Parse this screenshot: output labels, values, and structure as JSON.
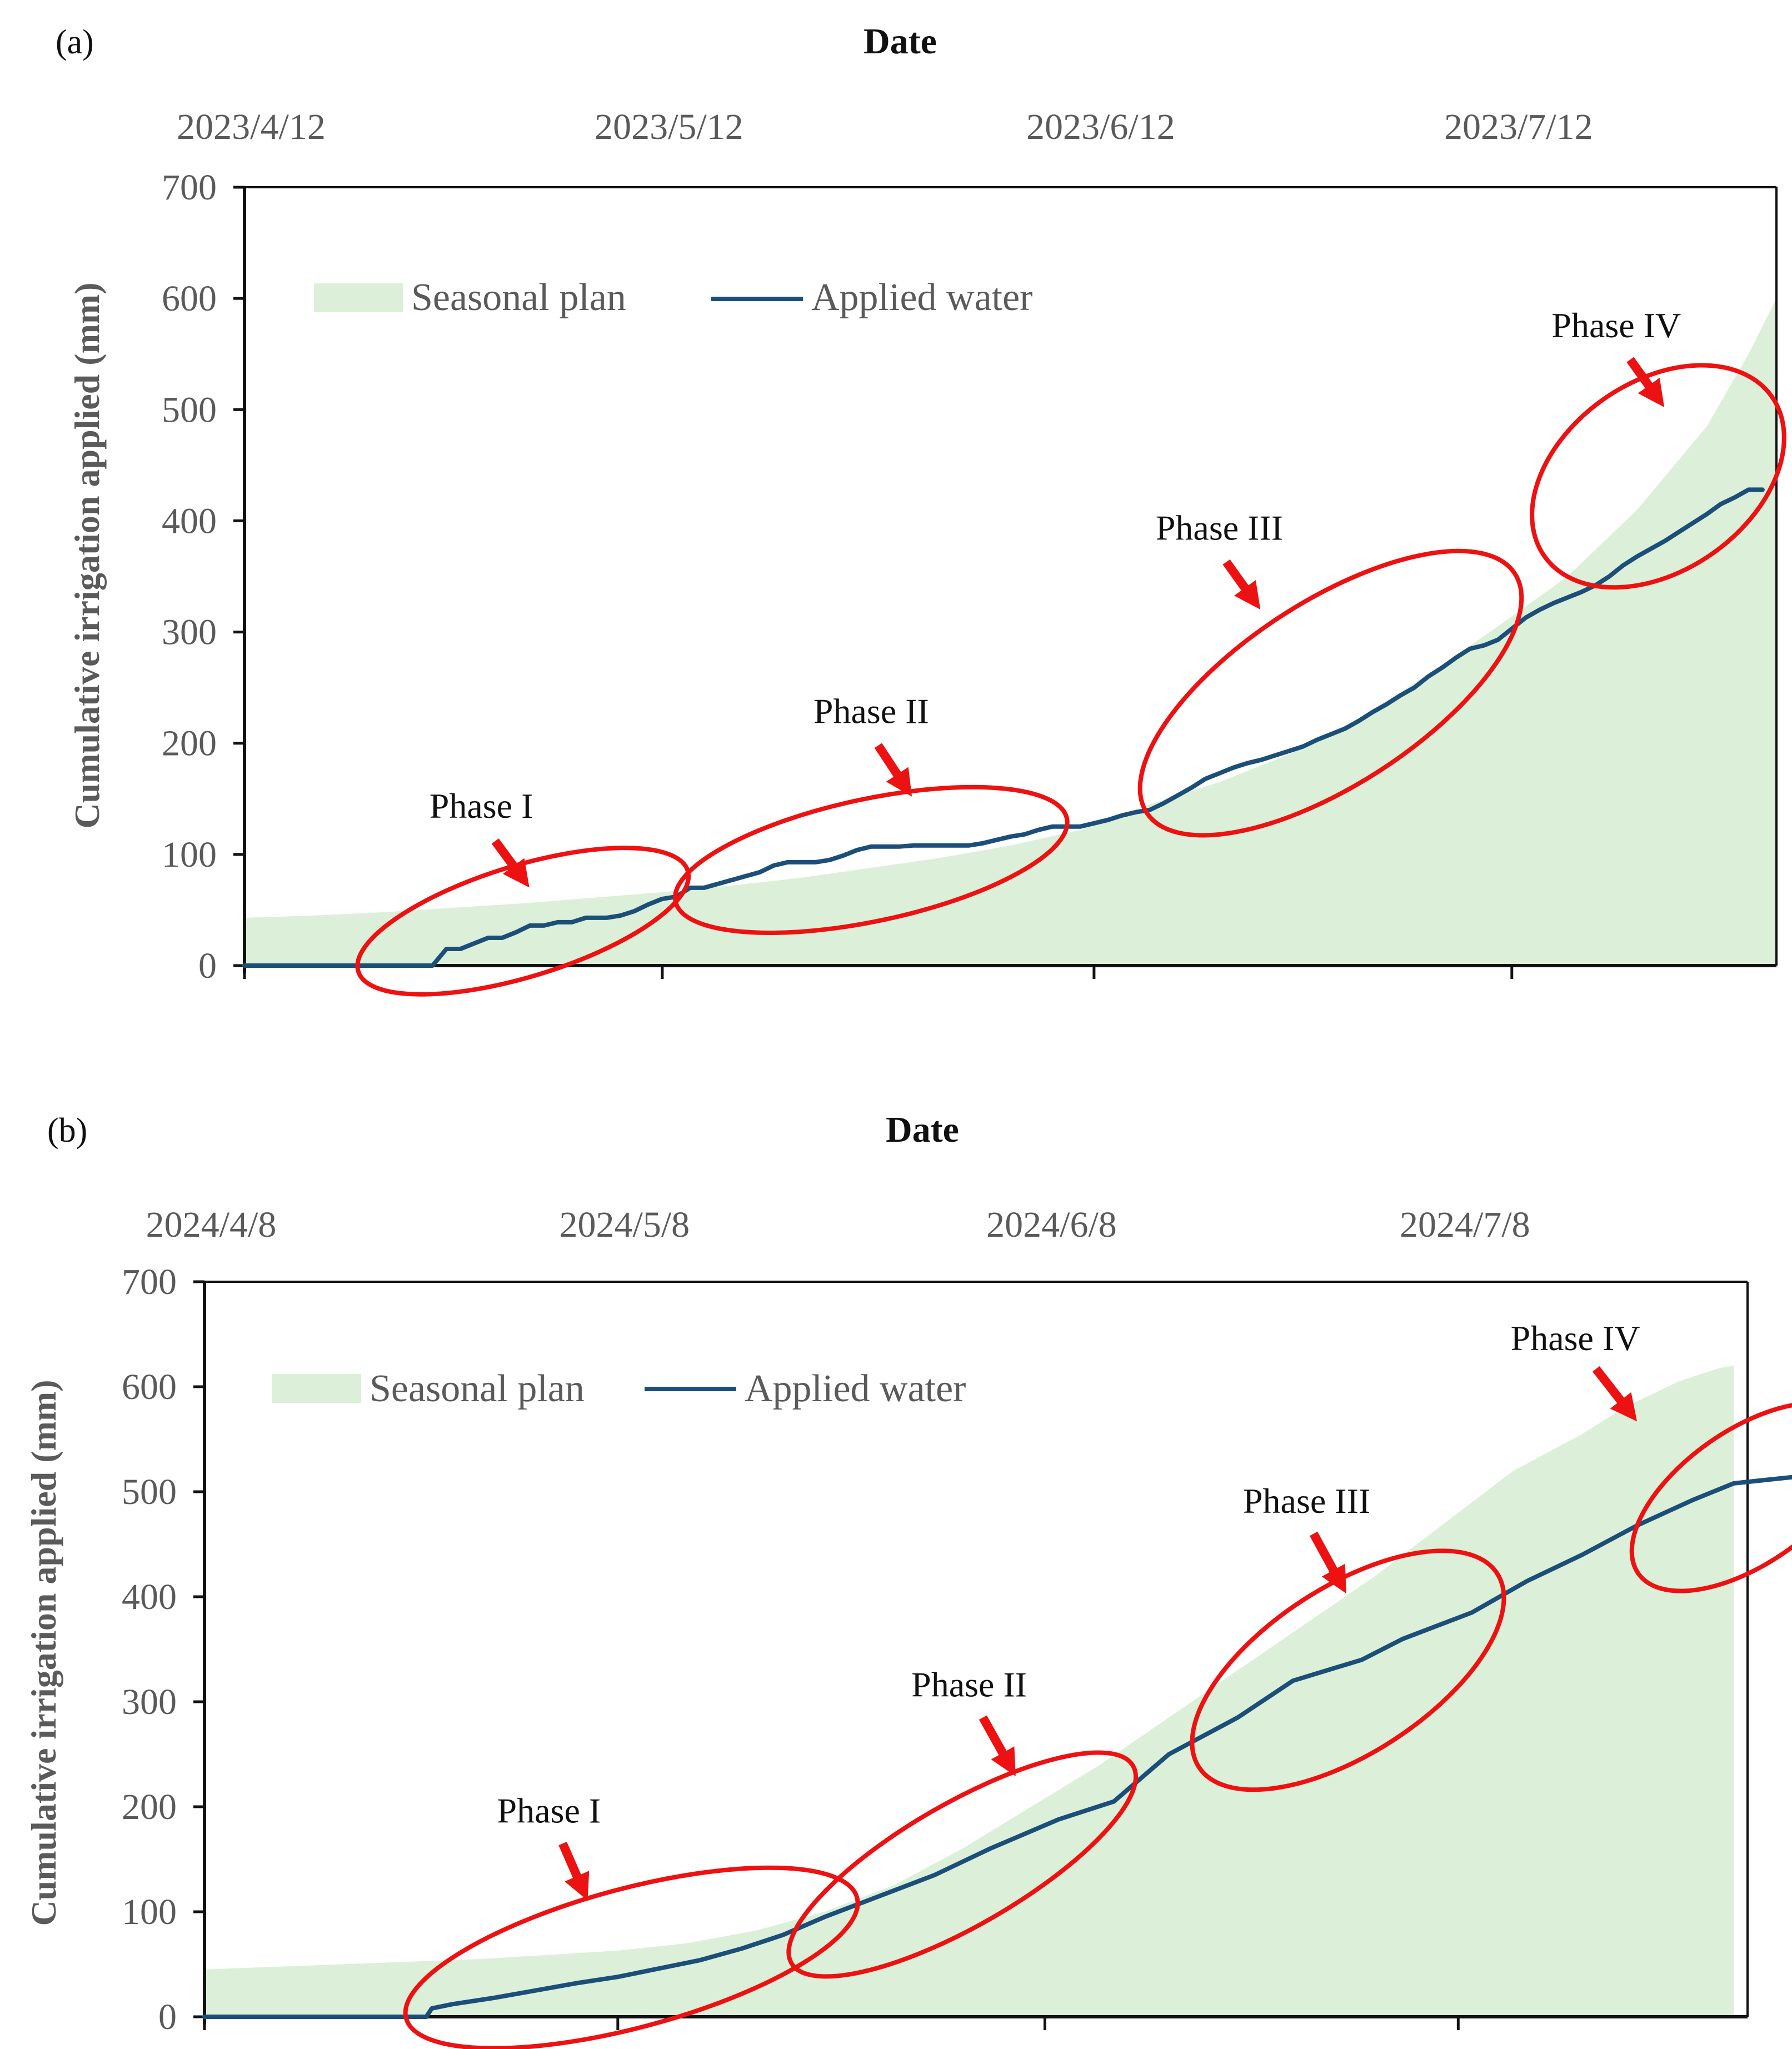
{
  "figure": {
    "colors": {
      "plan_fill": "#dcefd8",
      "applied_line": "#1b4f79",
      "axis": "#111111",
      "annotation": "#ee1111",
      "tick_text": "#5a5a5a"
    }
  },
  "chart_data": [
    {
      "panel_label": "(a)",
      "type": "area",
      "xlabel": "Date",
      "ylabel": "Cumulative irrigation applied (mm)",
      "ylim": [
        0,
        700
      ],
      "yticks": [
        0,
        100,
        200,
        300,
        400,
        500,
        600,
        700
      ],
      "x_unit": "days since 2023/4/12",
      "xlim": [
        0,
        110
      ],
      "date_ticks": [
        {
          "label": "2023/4/12",
          "day": 0
        },
        {
          "label": "2023/5/12",
          "day": 30
        },
        {
          "label": "2023/6/12",
          "day": 61
        },
        {
          "label": "2023/7/12",
          "day": 91
        }
      ],
      "legend": {
        "plan": "Seasonal plan",
        "applied": "Applied water",
        "placement": "top-left"
      },
      "series": [
        {
          "name": "Seasonal plan",
          "kind": "area",
          "points": [
            [
              0,
              43
            ],
            [
              5,
              45
            ],
            [
              10,
              48
            ],
            [
              15,
              52
            ],
            [
              20,
              56
            ],
            [
              25,
              61
            ],
            [
              30,
              66
            ],
            [
              35,
              72
            ],
            [
              40,
              79
            ],
            [
              45,
              88
            ],
            [
              50,
              97
            ],
            [
              55,
              108
            ],
            [
              60,
              122
            ],
            [
              62,
              130
            ],
            [
              65,
              145
            ],
            [
              70,
              165
            ],
            [
              75,
              190
            ],
            [
              80,
              222
            ],
            [
              85,
              262
            ],
            [
              90,
              305
            ],
            [
              95,
              350
            ],
            [
              100,
              410
            ],
            [
              105,
              485
            ],
            [
              108,
              550
            ],
            [
              110,
              600
            ]
          ]
        },
        {
          "name": "Applied water",
          "kind": "line",
          "points": [
            [
              0,
              0
            ],
            [
              13.5,
              0
            ],
            [
              14.5,
              15
            ],
            [
              15.5,
              15
            ],
            [
              16.5,
              20
            ],
            [
              17.5,
              25
            ],
            [
              18.5,
              25
            ],
            [
              19.5,
              30
            ],
            [
              20.5,
              36
            ],
            [
              21.5,
              36
            ],
            [
              22.5,
              39
            ],
            [
              23.5,
              39
            ],
            [
              24.5,
              43
            ],
            [
              26,
              43
            ],
            [
              27,
              45
            ],
            [
              28,
              49
            ],
            [
              29,
              55
            ],
            [
              30,
              60
            ],
            [
              31,
              62
            ],
            [
              32,
              70
            ],
            [
              33,
              70
            ],
            [
              35,
              77
            ],
            [
              37,
              84
            ],
            [
              38,
              90
            ],
            [
              39,
              93
            ],
            [
              40,
              93
            ],
            [
              41,
              93
            ],
            [
              42,
              95
            ],
            [
              43,
              99
            ],
            [
              44,
              104
            ],
            [
              45,
              107
            ],
            [
              46,
              107
            ],
            [
              47,
              107
            ],
            [
              48,
              108
            ],
            [
              49,
              108
            ],
            [
              51,
              108
            ],
            [
              52,
              108
            ],
            [
              53,
              110
            ],
            [
              54,
              113
            ],
            [
              55,
              116
            ],
            [
              56,
              118
            ],
            [
              57,
              122
            ],
            [
              58,
              125
            ],
            [
              59,
              125
            ],
            [
              60,
              125
            ],
            [
              61,
              128
            ],
            [
              62,
              131
            ],
            [
              63,
              135
            ],
            [
              64,
              138
            ],
            [
              65,
              140
            ],
            [
              66,
              146
            ],
            [
              67,
              153
            ],
            [
              68,
              160
            ],
            [
              69,
              168
            ],
            [
              70,
              173
            ],
            [
              71,
              178
            ],
            [
              72,
              182
            ],
            [
              73,
              185
            ],
            [
              74,
              189
            ],
            [
              75,
              193
            ],
            [
              76,
              197
            ],
            [
              77,
              203
            ],
            [
              78,
              208
            ],
            [
              79,
              213
            ],
            [
              80,
              220
            ],
            [
              81,
              228
            ],
            [
              82,
              235
            ],
            [
              83,
              243
            ],
            [
              84,
              250
            ],
            [
              85,
              260
            ],
            [
              86,
              268
            ],
            [
              87,
              277
            ],
            [
              88,
              285
            ],
            [
              89,
              288
            ],
            [
              90,
              293
            ],
            [
              91,
              303
            ],
            [
              92,
              313
            ],
            [
              93,
              320
            ],
            [
              94,
              326
            ],
            [
              95,
              331
            ],
            [
              96,
              336
            ],
            [
              97,
              342
            ],
            [
              98,
              350
            ],
            [
              99,
              360
            ],
            [
              100,
              368
            ],
            [
              101,
              375
            ],
            [
              102,
              382
            ],
            [
              103,
              390
            ],
            [
              104,
              398
            ],
            [
              105,
              406
            ],
            [
              106,
              415
            ],
            [
              107,
              421
            ],
            [
              108,
              428
            ],
            [
              109,
              428
            ]
          ]
        }
      ],
      "annotations": [
        {
          "label": "Phase I",
          "center": [
            20,
            40
          ],
          "text_at": [
            17,
            133
          ],
          "arrow_from": [
            18,
            112
          ],
          "arrow_to": [
            20,
            78
          ]
        },
        {
          "label": "Phase II",
          "center": [
            45,
            95
          ],
          "text_at": [
            45,
            218
          ],
          "arrow_from": [
            45.5,
            198
          ],
          "arrow_to": [
            47.5,
            160
          ]
        },
        {
          "label": "Phase III",
          "center": [
            78,
            245
          ],
          "text_at": [
            70,
            383
          ],
          "arrow_from": [
            70.5,
            363
          ],
          "arrow_to": [
            72.5,
            328
          ]
        },
        {
          "label": "Phase IV",
          "center": [
            101.5,
            440
          ],
          "text_at": [
            98.5,
            565
          ],
          "arrow_from": [
            99.5,
            545
          ],
          "arrow_to": [
            101.5,
            510
          ]
        }
      ]
    },
    {
      "panel_label": "(b)",
      "type": "area",
      "xlabel": "Date",
      "ylabel": "Cumulative irrigation applied (mm)",
      "ylim": [
        0,
        700
      ],
      "yticks": [
        0,
        100,
        200,
        300,
        400,
        500,
        600,
        700
      ],
      "x_unit": "days since 2024/4/8",
      "xlim": [
        0,
        112
      ],
      "date_ticks": [
        {
          "label": "2024/4/8",
          "day": 0
        },
        {
          "label": "2024/5/8",
          "day": 30
        },
        {
          "label": "2024/6/8",
          "day": 61
        },
        {
          "label": "2024/7/8",
          "day": 91
        }
      ],
      "legend": {
        "plan": "Seasonal plan",
        "applied": "Applied water",
        "placement": "top-left"
      },
      "series": [
        {
          "name": "Seasonal plan",
          "kind": "area",
          "points": [
            [
              0,
              45
            ],
            [
              10,
              50
            ],
            [
              20,
              55
            ],
            [
              30,
              63
            ],
            [
              35,
              70
            ],
            [
              40,
              82
            ],
            [
              45,
              100
            ],
            [
              50,
              125
            ],
            [
              55,
              160
            ],
            [
              60,
              200
            ],
            [
              65,
              240
            ],
            [
              70,
              285
            ],
            [
              75,
              330
            ],
            [
              80,
              375
            ],
            [
              85,
              420
            ],
            [
              90,
              470
            ],
            [
              95,
              520
            ],
            [
              100,
              555
            ],
            [
              103,
              580
            ],
            [
              107,
              605
            ],
            [
              110,
              618
            ],
            [
              111,
              620
            ]
          ]
        },
        {
          "name": "Applied water",
          "kind": "line",
          "points": [
            [
              0,
              0
            ],
            [
              16.1,
              0
            ],
            [
              16.5,
              8
            ],
            [
              18,
              12
            ],
            [
              21,
              18
            ],
            [
              24,
              25
            ],
            [
              27,
              32
            ],
            [
              30,
              38
            ],
            [
              33,
              46
            ],
            [
              36,
              54
            ],
            [
              39,
              65
            ],
            [
              42,
              78
            ],
            [
              45,
              95
            ],
            [
              48,
              110
            ],
            [
              53,
              135
            ],
            [
              57,
              160
            ],
            [
              62,
              188
            ],
            [
              66,
              205
            ],
            [
              70,
              250
            ],
            [
              75,
              285
            ],
            [
              79,
              320
            ],
            [
              84,
              340
            ],
            [
              87,
              360
            ],
            [
              92,
              385
            ],
            [
              96,
              415
            ],
            [
              100,
              440
            ],
            [
              104,
              468
            ],
            [
              108,
              492
            ],
            [
              111,
              508
            ],
            [
              116,
              515
            ]
          ]
        }
      ],
      "annotations": [
        {
          "label": "Phase I",
          "center": [
            31,
            56
          ],
          "text_at": [
            25,
            185
          ],
          "arrow_from": [
            26,
            165
          ],
          "arrow_to": [
            27.5,
            120
          ]
        },
        {
          "label": "Phase II",
          "center": [
            55,
            145
          ],
          "text_at": [
            55.5,
            305
          ],
          "arrow_from": [
            56.5,
            285
          ],
          "arrow_to": [
            58.5,
            238
          ]
        },
        {
          "label": "Phase III",
          "center": [
            83,
            330
          ],
          "text_at": [
            80,
            480
          ],
          "arrow_from": [
            80.5,
            460
          ],
          "arrow_to": [
            82.5,
            412
          ]
        },
        {
          "label": "Phase IV",
          "center": [
            112,
            495
          ],
          "text_at": [
            99.5,
            635
          ],
          "arrow_from": [
            101,
            617
          ],
          "arrow_to": [
            103.5,
            575
          ]
        }
      ]
    }
  ]
}
